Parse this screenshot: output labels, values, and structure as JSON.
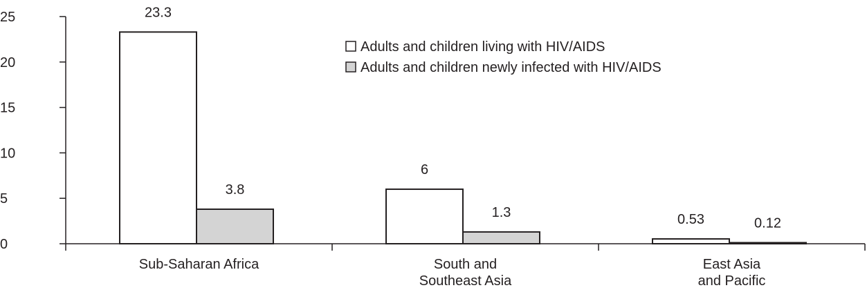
{
  "chart_data": {
    "type": "bar",
    "title": "",
    "xlabel": "",
    "ylabel": "",
    "ylim": [
      0,
      25
    ],
    "yticks": [
      "0",
      "5",
      "10",
      "15",
      "20",
      "25"
    ],
    "categories": [
      [
        "Sub-Saharan Africa"
      ],
      [
        "South and",
        "Southeast Asia"
      ],
      [
        "East Asia",
        "and Pacific"
      ]
    ],
    "series": [
      {
        "name": "Adults and children living with HIV/AIDS",
        "values": [
          23.3,
          6,
          0.53
        ],
        "labels": [
          "23.3",
          "6",
          "0.53"
        ],
        "color": "#ffffff"
      },
      {
        "name": "Adults and children newly infected with HIV/AIDS",
        "values": [
          3.8,
          1.3,
          0.12
        ],
        "labels": [
          "3.8",
          "1.3",
          "0.12"
        ],
        "color": "#d4d4d4"
      }
    ],
    "grid": false,
    "legend_position": "top-right",
    "stroke_color": "#231f20"
  }
}
